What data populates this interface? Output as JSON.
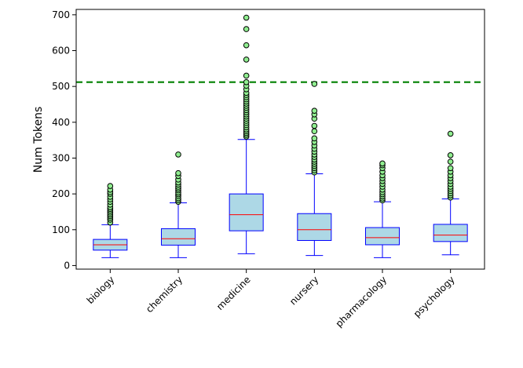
{
  "chart_data": {
    "type": "box",
    "title": "",
    "xlabel": "",
    "ylabel": "Num Tokens",
    "ylim": [
      -10,
      715
    ],
    "yticks": [
      0,
      100,
      200,
      300,
      400,
      500,
      600,
      700
    ],
    "categories": [
      "biology",
      "chemistry",
      "medicine",
      "nursery",
      "pharmacology",
      "psychology"
    ],
    "reference_line": {
      "value": 512,
      "color": "#008000",
      "style": "dashed"
    },
    "colors": {
      "box_fill": "#add8e6",
      "box_edge": "#0000ff",
      "median": "#ff0000",
      "outlier_fill": "#90ee90",
      "outlier_edge": "#000000"
    },
    "boxes": [
      {
        "name": "biology",
        "whisker_low": 22,
        "q1": 43,
        "median": 58,
        "q3": 73,
        "whisker_high": 114,
        "outliers": [
          120,
          128,
          133,
          138,
          143,
          148,
          153,
          158,
          163,
          170,
          178,
          185,
          192,
          200,
          205,
          212,
          222
        ]
      },
      {
        "name": "chemistry",
        "whisker_low": 22,
        "q1": 57,
        "median": 75,
        "q3": 103,
        "whisker_high": 175,
        "outliers": [
          178,
          183,
          188,
          194,
          199,
          204,
          210,
          215,
          220,
          226,
          232,
          240,
          250,
          258,
          310
        ]
      },
      {
        "name": "medicine",
        "whisker_low": 33,
        "q1": 97,
        "median": 142,
        "q3": 200,
        "whisker_high": 352,
        "outliers": [
          360,
          365,
          370,
          375,
          380,
          386,
          392,
          398,
          404,
          410,
          416,
          422,
          428,
          434,
          440,
          446,
          452,
          458,
          464,
          470,
          476,
          482,
          492,
          502,
          512,
          530,
          575,
          615,
          660,
          692
        ]
      },
      {
        "name": "nursery",
        "whisker_low": 28,
        "q1": 70,
        "median": 100,
        "q3": 145,
        "whisker_high": 256,
        "outliers": [
          260,
          266,
          272,
          278,
          284,
          290,
          296,
          303,
          310,
          318,
          326,
          335,
          345,
          355,
          375,
          390,
          410,
          422,
          432,
          507
        ]
      },
      {
        "name": "pharmacology",
        "whisker_low": 22,
        "q1": 58,
        "median": 78,
        "q3": 106,
        "whisker_high": 178,
        "outliers": [
          182,
          187,
          193,
          199,
          205,
          212,
          220,
          228,
          236,
          244,
          252,
          262,
          272,
          280,
          285
        ]
      },
      {
        "name": "psychology",
        "whisker_low": 30,
        "q1": 67,
        "median": 85,
        "q3": 115,
        "whisker_high": 186,
        "outliers": [
          190,
          196,
          202,
          208,
          214,
          220,
          228,
          236,
          244,
          252,
          262,
          272,
          290,
          308,
          368
        ]
      }
    ]
  }
}
